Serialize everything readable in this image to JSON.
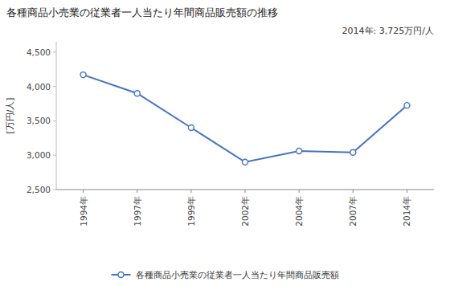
{
  "chart_data": {
    "type": "line",
    "title": "各種商品小売業の従業者一人当たり年間商品販売額の推移",
    "y_label": "[万円/人]",
    "annotation": "2014年: 3,725万円/人",
    "categories": [
      "1994年",
      "1997年",
      "1999年",
      "2002年",
      "2004年",
      "2007年",
      "2014年"
    ],
    "series": [
      {
        "name": "各種商品小売業の従業者一人当たり年間商品販売額",
        "color": "#4472C4",
        "marker": "circle",
        "values": [
          4170,
          3900,
          3400,
          2900,
          3060,
          3040,
          3725
        ]
      }
    ],
    "ylim": [
      2500,
      4650
    ],
    "yticks": [
      {
        "value": 2500,
        "label": "2,500"
      },
      {
        "value": 3000,
        "label": "3,000"
      },
      {
        "value": 3500,
        "label": "3,500"
      },
      {
        "value": 4000,
        "label": "4,000"
      },
      {
        "value": 4500,
        "label": "4,500"
      }
    ],
    "grid": false,
    "legend": "bottom"
  }
}
